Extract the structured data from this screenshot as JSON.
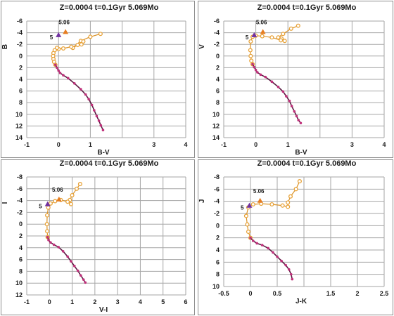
{
  "chart_data": [
    {
      "type": "scatter",
      "title": "Z=0.0004  t=0.1Gyr  5.069Mo",
      "xlabel": "B-V",
      "ylabel": "B",
      "xlim": [
        -1,
        4
      ],
      "ylim": [
        14,
        -6
      ],
      "y_inverted": true,
      "xticks": [
        -1,
        0,
        1,
        2,
        3,
        4
      ],
      "yticks": [
        -6,
        -4,
        -2,
        0,
        2,
        4,
        6,
        8,
        10,
        12,
        14
      ],
      "xtick_labels": [
        "-1",
        "0",
        "1",
        "",
        "3",
        "4"
      ],
      "series": [
        {
          "color": "#e8a33a",
          "marker": "open-circle",
          "x": [
            1.32,
            1.0,
            0.7,
            0.45,
            0.6,
            0.78,
            0.72,
            0.4,
            0.15,
            0.0,
            -0.05,
            -0.12,
            -0.16,
            -0.17,
            -0.16,
            -0.14,
            -0.1
          ],
          "y": [
            -3.8,
            -3.3,
            -2.6,
            -1.4,
            -1.9,
            -2.5,
            -2.0,
            -1.6,
            -1.3,
            -1.2,
            -1.4,
            -1.0,
            -0.5,
            0.0,
            0.5,
            1.0,
            1.5
          ]
        },
        {
          "color": "#c0307a",
          "marker": "dot",
          "x": [
            -0.1,
            -0.05,
            0.0,
            0.05,
            0.15,
            0.3,
            0.5,
            0.7,
            0.85,
            0.95,
            1.05,
            1.12,
            1.2,
            1.27,
            1.33,
            1.4
          ],
          "y": [
            1.5,
            2.0,
            2.5,
            2.9,
            3.3,
            3.8,
            4.7,
            5.7,
            6.6,
            7.4,
            8.4,
            9.3,
            10.3,
            11.1,
            11.9,
            12.7
          ]
        }
      ],
      "annotations": [
        {
          "label": "5",
          "x": 0.0,
          "y": -3.6,
          "marker": "purple-triangle"
        },
        {
          "label": "5.06",
          "x": 0.22,
          "y": -4.15,
          "marker": "orange-triangle"
        }
      ]
    },
    {
      "type": "scatter",
      "title": "Z=0.0004  t=0.1Gyr  5.069Mo",
      "xlabel": "B-V",
      "ylabel": "V",
      "xlim": [
        -1,
        4
      ],
      "ylim": [
        14,
        -6
      ],
      "y_inverted": true,
      "xticks": [
        -1,
        0,
        1,
        2,
        3,
        4
      ],
      "yticks": [
        -6,
        -4,
        -2,
        0,
        2,
        4,
        6,
        8,
        10,
        12,
        14
      ],
      "xtick_labels": [
        "-1",
        "0",
        "1",
        "",
        "3",
        "4"
      ],
      "series": [
        {
          "color": "#e8a33a",
          "marker": "open-circle",
          "x": [
            1.32,
            1.1,
            0.85,
            0.7,
            0.8,
            0.9,
            0.78,
            0.5,
            0.2,
            0.0,
            -0.1,
            -0.16,
            -0.17,
            -0.16,
            -0.14,
            -0.1
          ],
          "y": [
            -5.2,
            -4.7,
            -3.8,
            -3.2,
            -3.0,
            -2.6,
            -2.7,
            -3.2,
            -3.4,
            -3.5,
            -3.3,
            -2.5,
            -1.0,
            0.0,
            0.8,
            1.4
          ]
        },
        {
          "color": "#c0307a",
          "marker": "dot",
          "x": [
            -0.1,
            -0.05,
            0.0,
            0.05,
            0.15,
            0.3,
            0.5,
            0.7,
            0.85,
            0.95,
            1.05,
            1.12,
            1.2,
            1.27,
            1.33,
            1.4
          ],
          "y": [
            1.4,
            1.9,
            2.4,
            2.8,
            3.2,
            3.6,
            4.4,
            5.3,
            6.1,
            6.9,
            7.7,
            8.6,
            9.5,
            10.3,
            11.0,
            11.5
          ]
        }
      ],
      "annotations": [
        {
          "label": "5",
          "x": -0.05,
          "y": -3.6,
          "marker": "purple-triangle"
        },
        {
          "label": "5.06",
          "x": 0.22,
          "y": -4.15,
          "marker": "orange-triangle"
        }
      ]
    },
    {
      "type": "scatter",
      "title": "Z=0.0004  t=0.1Gyr  5.069Mo",
      "xlabel": "V-I",
      "ylabel": "I",
      "xlim": [
        -1,
        6
      ],
      "ylim": [
        12,
        -8
      ],
      "y_inverted": true,
      "xticks": [
        -1,
        0,
        1,
        2,
        3,
        4,
        5,
        6
      ],
      "yticks": [
        -8,
        -6,
        -4,
        -2,
        0,
        2,
        4,
        6,
        8,
        10,
        12
      ],
      "xtick_labels": [
        "-1",
        "0",
        "1",
        "2",
        "3",
        "4",
        "5",
        "6"
      ],
      "series": [
        {
          "color": "#e8a33a",
          "marker": "open-circle",
          "x": [
            1.35,
            1.2,
            1.0,
            0.9,
            0.95,
            0.8,
            0.5,
            0.25,
            0.05,
            -0.05,
            -0.1,
            -0.11,
            -0.1,
            -0.08
          ],
          "y": [
            -6.8,
            -6.0,
            -4.9,
            -4.1,
            -3.4,
            -3.8,
            -4.1,
            -3.9,
            -3.5,
            -2.8,
            -1.5,
            0.0,
            1.2,
            2.2
          ]
        },
        {
          "color": "#c0307a",
          "marker": "dot",
          "x": [
            -0.08,
            -0.04,
            0.05,
            0.2,
            0.4,
            0.6,
            0.8,
            0.95,
            1.1,
            1.25,
            1.38,
            1.5,
            1.58
          ],
          "y": [
            2.2,
            2.7,
            3.1,
            3.5,
            3.9,
            4.6,
            5.5,
            6.3,
            7.1,
            7.9,
            8.7,
            9.4,
            9.9
          ]
        }
      ],
      "annotations": [
        {
          "label": "5",
          "x": -0.08,
          "y": -3.4,
          "marker": "purple-triangle"
        },
        {
          "label": "5.06",
          "x": 0.42,
          "y": -4.2,
          "marker": "orange-triangle"
        }
      ]
    },
    {
      "type": "scatter",
      "title": "Z=0.0004  t=0.1Gyr  5.069Mo",
      "xlabel": "J-K",
      "ylabel": "J",
      "xlim": [
        -0.5,
        2.5
      ],
      "ylim": [
        10,
        -8
      ],
      "y_inverted": true,
      "xticks": [
        -0.5,
        0,
        0.5,
        1,
        1.5,
        2,
        2.5
      ],
      "yticks": [
        -8,
        -6,
        -4,
        -2,
        0,
        2,
        4,
        6,
        8,
        10
      ],
      "xtick_labels": [
        "-0.5",
        "0",
        "0.5",
        "",
        "1.5",
        "2",
        "2.5"
      ],
      "series": [
        {
          "color": "#e8a33a",
          "marker": "open-circle",
          "x": [
            0.92,
            0.85,
            0.75,
            0.7,
            0.7,
            0.6,
            0.4,
            0.2,
            0.05,
            -0.04,
            -0.08,
            -0.06,
            -0.04,
            0.0
          ],
          "y": [
            -7.3,
            -6.0,
            -4.8,
            -3.8,
            -3.1,
            -3.3,
            -3.5,
            -3.6,
            -3.5,
            -3.0,
            -1.6,
            -0.2,
            1.0,
            2.0
          ]
        },
        {
          "color": "#c0307a",
          "marker": "dot",
          "x": [
            0.0,
            0.05,
            0.12,
            0.22,
            0.33,
            0.42,
            0.5,
            0.58,
            0.66,
            0.72,
            0.76,
            0.78
          ],
          "y": [
            2.0,
            2.5,
            2.9,
            3.2,
            3.7,
            4.4,
            5.1,
            5.8,
            6.5,
            7.2,
            8.0,
            8.8
          ]
        }
      ],
      "annotations": [
        {
          "label": "5",
          "x": -0.02,
          "y": -3.3,
          "marker": "purple-triangle"
        },
        {
          "label": "5.06",
          "x": 0.18,
          "y": -4.1,
          "marker": "orange-triangle"
        }
      ]
    }
  ]
}
